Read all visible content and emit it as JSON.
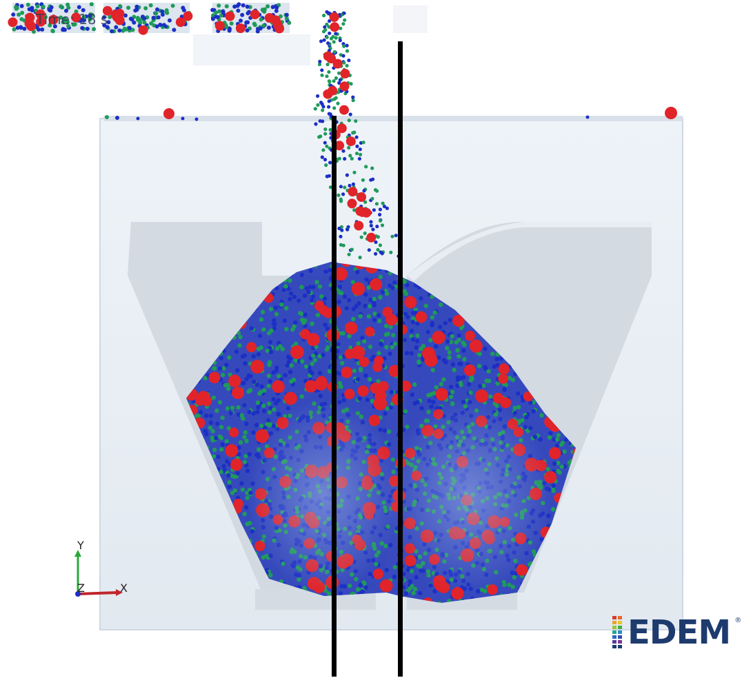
{
  "simulation": {
    "time_label": "Time: 18 s",
    "logo_text": "EDEM",
    "axes": {
      "x_label": "X",
      "y_label": "Y",
      "z_label": "Z"
    },
    "colors": {
      "particle_large": "#e0242a",
      "particle_medium": "#1f9a5a",
      "particle_small": "#1c2fc4",
      "container": "#e4ecf3",
      "hopper": "#cfd7df",
      "divider": "#000000"
    },
    "icons": [
      "edem-logo-grid-icon",
      "axis-triad-icon"
    ]
  }
}
